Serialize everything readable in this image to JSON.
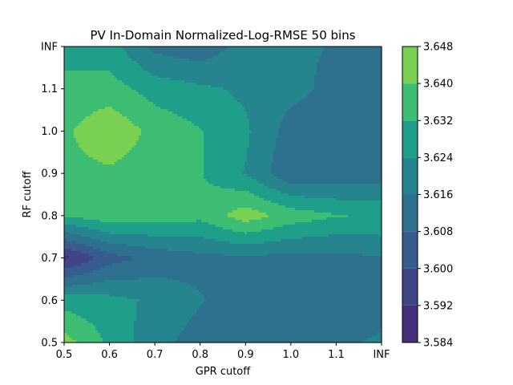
{
  "chart_data": {
    "type": "heatmap",
    "style": "filled-contour",
    "title": "PV In-Domain Normalized-Log-RMSE 50 bins",
    "xlabel": "GPR cutoff",
    "ylabel": "RF cutoff",
    "x_tick_labels": [
      "0.5",
      "0.6",
      "0.7",
      "0.8",
      "0.9",
      "1.0",
      "1.1",
      "INF"
    ],
    "y_tick_labels": [
      "0.5",
      "0.6",
      "0.7",
      "0.8",
      "0.9",
      "1.0",
      "1.1",
      "INF"
    ],
    "x_values": [
      0.5,
      0.6,
      0.7,
      0.8,
      0.9,
      1.0,
      1.1,
      1.2
    ],
    "y_values": [
      0.5,
      0.6,
      0.7,
      0.8,
      0.9,
      1.0,
      1.1,
      1.2
    ],
    "z": [
      [
        3.6435,
        3.6305,
        3.6185,
        3.6125,
        3.6145,
        3.6135,
        3.6155,
        3.6165
      ],
      [
        3.6285,
        3.6265,
        3.6225,
        3.6165,
        3.6125,
        3.6125,
        3.6135,
        3.6145
      ],
      [
        3.5895,
        3.6045,
        3.6105,
        3.6135,
        3.6145,
        3.6135,
        3.6135,
        3.6155
      ],
      [
        3.6325,
        3.6375,
        3.6365,
        3.6345,
        3.6445,
        3.6365,
        3.6325,
        3.6315
      ],
      [
        3.6375,
        3.6385,
        3.6355,
        3.6325,
        3.6235,
        3.6095,
        3.6105,
        3.6115
      ],
      [
        3.6385,
        3.6465,
        3.6375,
        3.6325,
        3.6255,
        3.6125,
        3.6115,
        3.6115
      ],
      [
        3.6345,
        3.6355,
        3.6285,
        3.6255,
        3.6225,
        3.6185,
        3.6135,
        3.6125
      ],
      [
        3.6285,
        3.6275,
        3.6135,
        3.6105,
        3.6195,
        3.6175,
        3.6155,
        3.6145
      ]
    ],
    "levels": [
      3.584,
      3.592,
      3.6,
      3.608,
      3.616,
      3.624,
      3.632,
      3.64,
      3.648
    ],
    "level_labels": [
      "3.584",
      "3.592",
      "3.600",
      "3.608",
      "3.616",
      "3.624",
      "3.632",
      "3.640",
      "3.648"
    ],
    "colormap": [
      "#481a6c",
      "#453781",
      "#39568c",
      "#2d708e",
      "#25858e",
      "#1f9e89",
      "#2ab07f",
      "#52c569",
      "#86d549",
      "#c2df23",
      "#e3e418"
    ],
    "band_colors": [
      "#46307e",
      "#404588",
      "#365d8d",
      "#2d718e",
      "#25848e",
      "#1f9e89",
      "#3dbc74",
      "#7ad151",
      "#d1e11c"
    ],
    "legend": "colorbar-right",
    "grid": false
  }
}
